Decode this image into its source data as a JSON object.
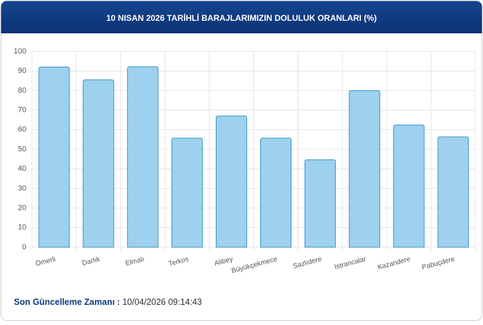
{
  "chart_data": {
    "type": "bar",
    "title": "10 NISAN 2026 TARİHLİ BARAJLARIMIZIN DOLULUK ORANLARI (%)",
    "categories": [
      "Ömerli",
      "Darlık",
      "Elmalı",
      "Terkos",
      "Alibey",
      "Büyükçekmece",
      "Sazlıdere",
      "Istrancalar",
      "Kazandere",
      "Pabuçdere"
    ],
    "values": [
      92,
      85.5,
      92.2,
      55.7,
      67,
      55.7,
      44.7,
      80,
      62.4,
      56.4
    ],
    "color": "#9dd1ee",
    "stroke": "#3a93c4",
    "ylim": [
      0,
      100
    ],
    "yticks": [
      0,
      10,
      20,
      30,
      40,
      50,
      60,
      70,
      80,
      90,
      100
    ],
    "grid": true
  },
  "footer": {
    "label": "Son Güncelleme Zamanı :",
    "value": "10/04/2026 09:14:43"
  }
}
